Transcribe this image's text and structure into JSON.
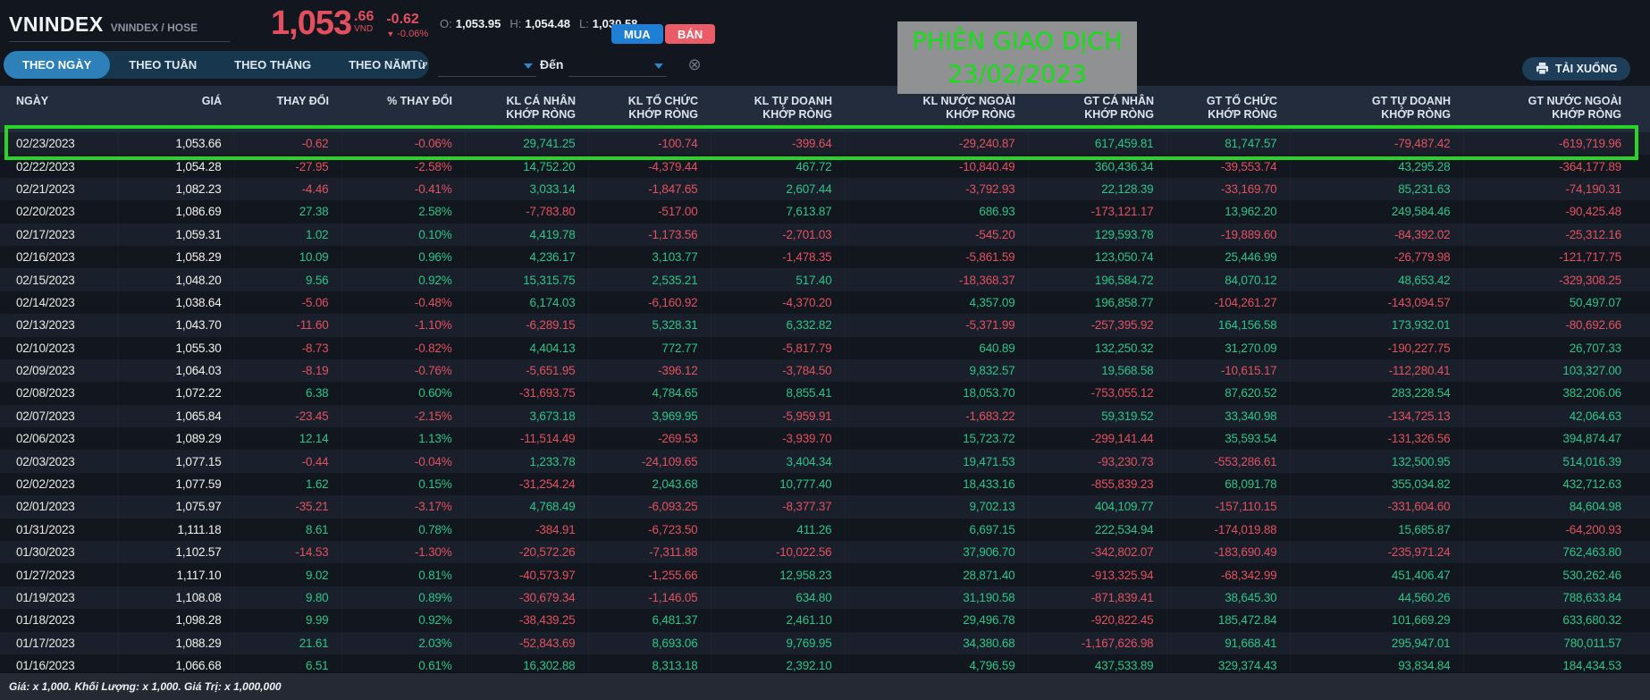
{
  "header": {
    "symbol": "VNINDEX",
    "subtitle": "VNINDEX / HOSE",
    "price_int": "1,053",
    "price_dec": ".66",
    "currency": "VND",
    "change": "-0.62",
    "change_pct": "-0.06%",
    "ohl": [
      {
        "label": "O:",
        "value": "1,053.95"
      },
      {
        "label": "H:",
        "value": "1,054.48"
      },
      {
        "label": "L:",
        "value": "1,030.58"
      }
    ],
    "buy_label": "MUA",
    "sell_label": "BÁN"
  },
  "overlay": {
    "line1": "PHIÊN GIAO DỊCH",
    "line2": "23/02/2023",
    "text_color": "#15e015",
    "bg_color": "#8f9193"
  },
  "toolbar": {
    "tabs": [
      {
        "label": "THEO NGÀY",
        "active": true
      },
      {
        "label": "THEO TUẦN",
        "active": false
      },
      {
        "label": "THEO THÁNG",
        "active": false
      },
      {
        "label": "THEO NĂM",
        "active": false
      }
    ],
    "from_label": "Từ",
    "to_label": "Đến",
    "download_label": "TẢI XUỐNG"
  },
  "icons": {
    "down_triangle": "▼",
    "clear_circle_x": "⊗"
  },
  "table": {
    "columns": [
      {
        "label": "NGÀY",
        "sub": ""
      },
      {
        "label": "GIÁ",
        "sub": ""
      },
      {
        "label": "THAY ĐỔI",
        "sub": ""
      },
      {
        "label": "% THAY ĐỔI",
        "sub": ""
      },
      {
        "label": "KL CÁ NHÂN",
        "sub": "KHỚP RÒNG"
      },
      {
        "label": "KL TỔ CHỨC",
        "sub": "KHỚP RÒNG"
      },
      {
        "label": "KL TỰ DOANH",
        "sub": "KHỚP RÒNG"
      },
      {
        "label": "KL NƯỚC NGOÀI",
        "sub": "KHỚP RÒNG"
      },
      {
        "label": "GT CÁ NHÂN",
        "sub": "KHỚP RÒNG"
      },
      {
        "label": "GT TỔ CHỨC",
        "sub": "KHỚP RÒNG"
      },
      {
        "label": "GT TỰ DOANH",
        "sub": "KHỚP RÒNG"
      },
      {
        "label": "GT NƯỚC NGOÀI",
        "sub": "KHỚP RÒNG"
      }
    ],
    "highlighted_row": 0,
    "rows": [
      [
        "02/23/2023",
        "1,053.66",
        "-0.62",
        "-0.06%",
        "29,741.25",
        "-100.74",
        "-399.64",
        "-29,240.87",
        "617,459.81",
        "81,747.57",
        "-79,487.42",
        "-619,719.96"
      ],
      [
        "02/22/2023",
        "1,054.28",
        "-27.95",
        "-2.58%",
        "14,752.20",
        "-4,379.44",
        "467.72",
        "-10,840.49",
        "360,436.34",
        "-39,553.74",
        "43,295.28",
        "-364,177.89"
      ],
      [
        "02/21/2023",
        "1,082.23",
        "-4.46",
        "-0.41%",
        "3,033.14",
        "-1,847.65",
        "2,607.44",
        "-3,792.93",
        "22,128.39",
        "-33,169.70",
        "85,231.63",
        "-74,190.31"
      ],
      [
        "02/20/2023",
        "1,086.69",
        "27.38",
        "2.58%",
        "-7,783.80",
        "-517.00",
        "7,613.87",
        "686.93",
        "-173,121.17",
        "13,962.20",
        "249,584.46",
        "-90,425.48"
      ],
      [
        "02/17/2023",
        "1,059.31",
        "1.02",
        "0.10%",
        "4,419.78",
        "-1,173.56",
        "-2,701.03",
        "-545.20",
        "129,593.78",
        "-19,889.60",
        "-84,392.02",
        "-25,312.16"
      ],
      [
        "02/16/2023",
        "1,058.29",
        "10.09",
        "0.96%",
        "4,236.17",
        "3,103.77",
        "-1,478.35",
        "-5,861.59",
        "123,050.74",
        "25,446.99",
        "-26,779.98",
        "-121,717.75"
      ],
      [
        "02/15/2023",
        "1,048.20",
        "9.56",
        "0.92%",
        "15,315.75",
        "2,535.21",
        "517.40",
        "-18,368.37",
        "196,584.72",
        "84,070.12",
        "48,653.42",
        "-329,308.25"
      ],
      [
        "02/14/2023",
        "1,038.64",
        "-5.06",
        "-0.48%",
        "6,174.03",
        "-6,160.92",
        "-4,370.20",
        "4,357.09",
        "196,858.77",
        "-104,261.27",
        "-143,094.57",
        "50,497.07"
      ],
      [
        "02/13/2023",
        "1,043.70",
        "-11.60",
        "-1.10%",
        "-6,289.15",
        "5,328.31",
        "6,332.82",
        "-5,371.99",
        "-257,395.92",
        "164,156.58",
        "173,932.01",
        "-80,692.66"
      ],
      [
        "02/10/2023",
        "1,055.30",
        "-8.73",
        "-0.82%",
        "4,404.13",
        "772.77",
        "-5,817.79",
        "640.89",
        "132,250.32",
        "31,270.09",
        "-190,227.75",
        "26,707.33"
      ],
      [
        "02/09/2023",
        "1,064.03",
        "-8.19",
        "-0.76%",
        "-5,651.95",
        "-396.12",
        "-3,784.50",
        "9,832.57",
        "19,568.58",
        "-10,615.17",
        "-112,280.41",
        "103,327.00"
      ],
      [
        "02/08/2023",
        "1,072.22",
        "6.38",
        "0.60%",
        "-31,693.75",
        "4,784.65",
        "8,855.41",
        "18,053.70",
        "-753,055.12",
        "87,620.52",
        "283,228.54",
        "382,206.06"
      ],
      [
        "02/07/2023",
        "1,065.84",
        "-23.45",
        "-2.15%",
        "3,673.18",
        "3,969.95",
        "-5,959.91",
        "-1,683.22",
        "59,319.52",
        "33,340.98",
        "-134,725.13",
        "42,064.63"
      ],
      [
        "02/06/2023",
        "1,089.29",
        "12.14",
        "1.13%",
        "-11,514.49",
        "-269.53",
        "-3,939.70",
        "15,723.72",
        "-299,141.44",
        "35,593.54",
        "-131,326.56",
        "394,874.47"
      ],
      [
        "02/03/2023",
        "1,077.15",
        "-0.44",
        "-0.04%",
        "1,233.78",
        "-24,109.65",
        "3,404.34",
        "19,471.53",
        "-93,230.73",
        "-553,286.61",
        "132,500.95",
        "514,016.39"
      ],
      [
        "02/02/2023",
        "1,077.59",
        "1.62",
        "0.15%",
        "-31,254.24",
        "2,043.68",
        "10,777.40",
        "18,433.16",
        "-855,839.23",
        "68,091.78",
        "355,034.82",
        "432,712.63"
      ],
      [
        "02/01/2023",
        "1,075.97",
        "-35.21",
        "-3.17%",
        "4,768.49",
        "-6,093.25",
        "-8,377.37",
        "9,702.13",
        "404,109.77",
        "-157,110.15",
        "-331,604.60",
        "84,604.98"
      ],
      [
        "01/31/2023",
        "1,111.18",
        "8.61",
        "0.78%",
        "-384.91",
        "-6,723.50",
        "411.26",
        "6,697.15",
        "222,534.94",
        "-174,019.88",
        "15,685.87",
        "-64,200.93"
      ],
      [
        "01/30/2023",
        "1,102.57",
        "-14.53",
        "-1.30%",
        "-20,572.26",
        "-7,311.88",
        "-10,022.56",
        "37,906.70",
        "-342,802.07",
        "-183,690.49",
        "-235,971.24",
        "762,463.80"
      ],
      [
        "01/27/2023",
        "1,117.10",
        "9.02",
        "0.81%",
        "-40,573.97",
        "-1,255.66",
        "12,958.23",
        "28,871.40",
        "-913,325.94",
        "-68,342.99",
        "451,406.47",
        "530,262.46"
      ],
      [
        "01/19/2023",
        "1,108.08",
        "9.80",
        "0.89%",
        "-30,679.34",
        "-1,146.05",
        "634.80",
        "31,190.58",
        "-871,839.41",
        "38,645.30",
        "44,560.26",
        "788,633.84"
      ],
      [
        "01/18/2023",
        "1,098.28",
        "9.99",
        "0.92%",
        "-38,439.25",
        "6,481.37",
        "2,461.10",
        "29,496.78",
        "-920,822.45",
        "185,472.84",
        "101,669.29",
        "633,680.32"
      ],
      [
        "01/17/2023",
        "1,088.29",
        "21.61",
        "2.03%",
        "-52,843.69",
        "8,693.06",
        "9,769.95",
        "34,380.68",
        "-1,167,626.98",
        "91,668.41",
        "295,947.01",
        "780,011.57"
      ],
      [
        "01/16/2023",
        "1,066.68",
        "6.51",
        "0.61%",
        "16,302.88",
        "8,313.18",
        "2,392.10",
        "4,796.59",
        "437,533.89",
        "329,374.43",
        "93,834.84",
        "184,434.53"
      ]
    ]
  },
  "footer": {
    "note": "Giá: x 1,000. Khối Lượng: x 1,000. Giá Trị: x 1,000,000"
  },
  "colors": {
    "background": "#12161f",
    "positive": "#2cc487",
    "negative": "#e2515f",
    "accent_blue": "#2d81b8",
    "buy_blue": "#1f7fd4",
    "sell_red": "#ea5d68",
    "highlight_green": "#28d428",
    "header_row_bg": "#222c3d"
  }
}
